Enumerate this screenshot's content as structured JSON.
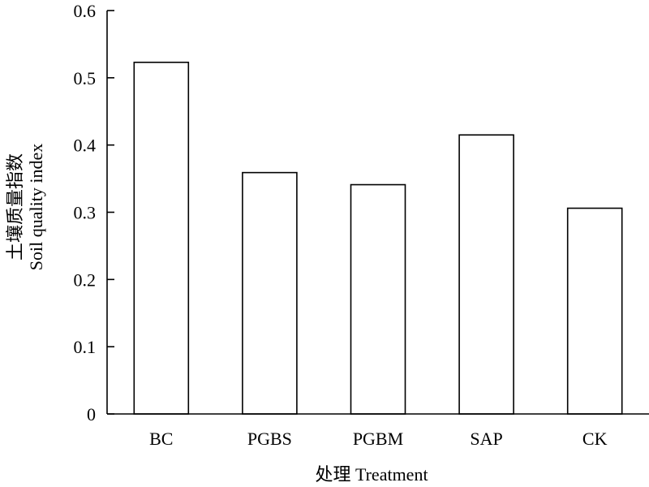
{
  "chart_data": {
    "type": "bar",
    "categories": [
      "BC",
      "PGBS",
      "PGBM",
      "SAP",
      "CK"
    ],
    "values": [
      0.523,
      0.359,
      0.341,
      0.415,
      0.306
    ],
    "xlabel": "处理 Treatment",
    "ylabel_zh": "土壤质量指数",
    "ylabel_en": "Soil quality index",
    "ylim": [
      0,
      0.6
    ],
    "yticks": [
      0,
      0.1,
      0.2,
      0.3,
      0.4,
      0.5,
      0.6
    ],
    "ytick_labels": [
      "0",
      "0.1",
      "0.2",
      "0.3",
      "0.4",
      "0.5",
      "0.6"
    ],
    "bar_fill": "#ffffff",
    "bar_stroke": "#000000",
    "grid": false,
    "legend": "none"
  }
}
